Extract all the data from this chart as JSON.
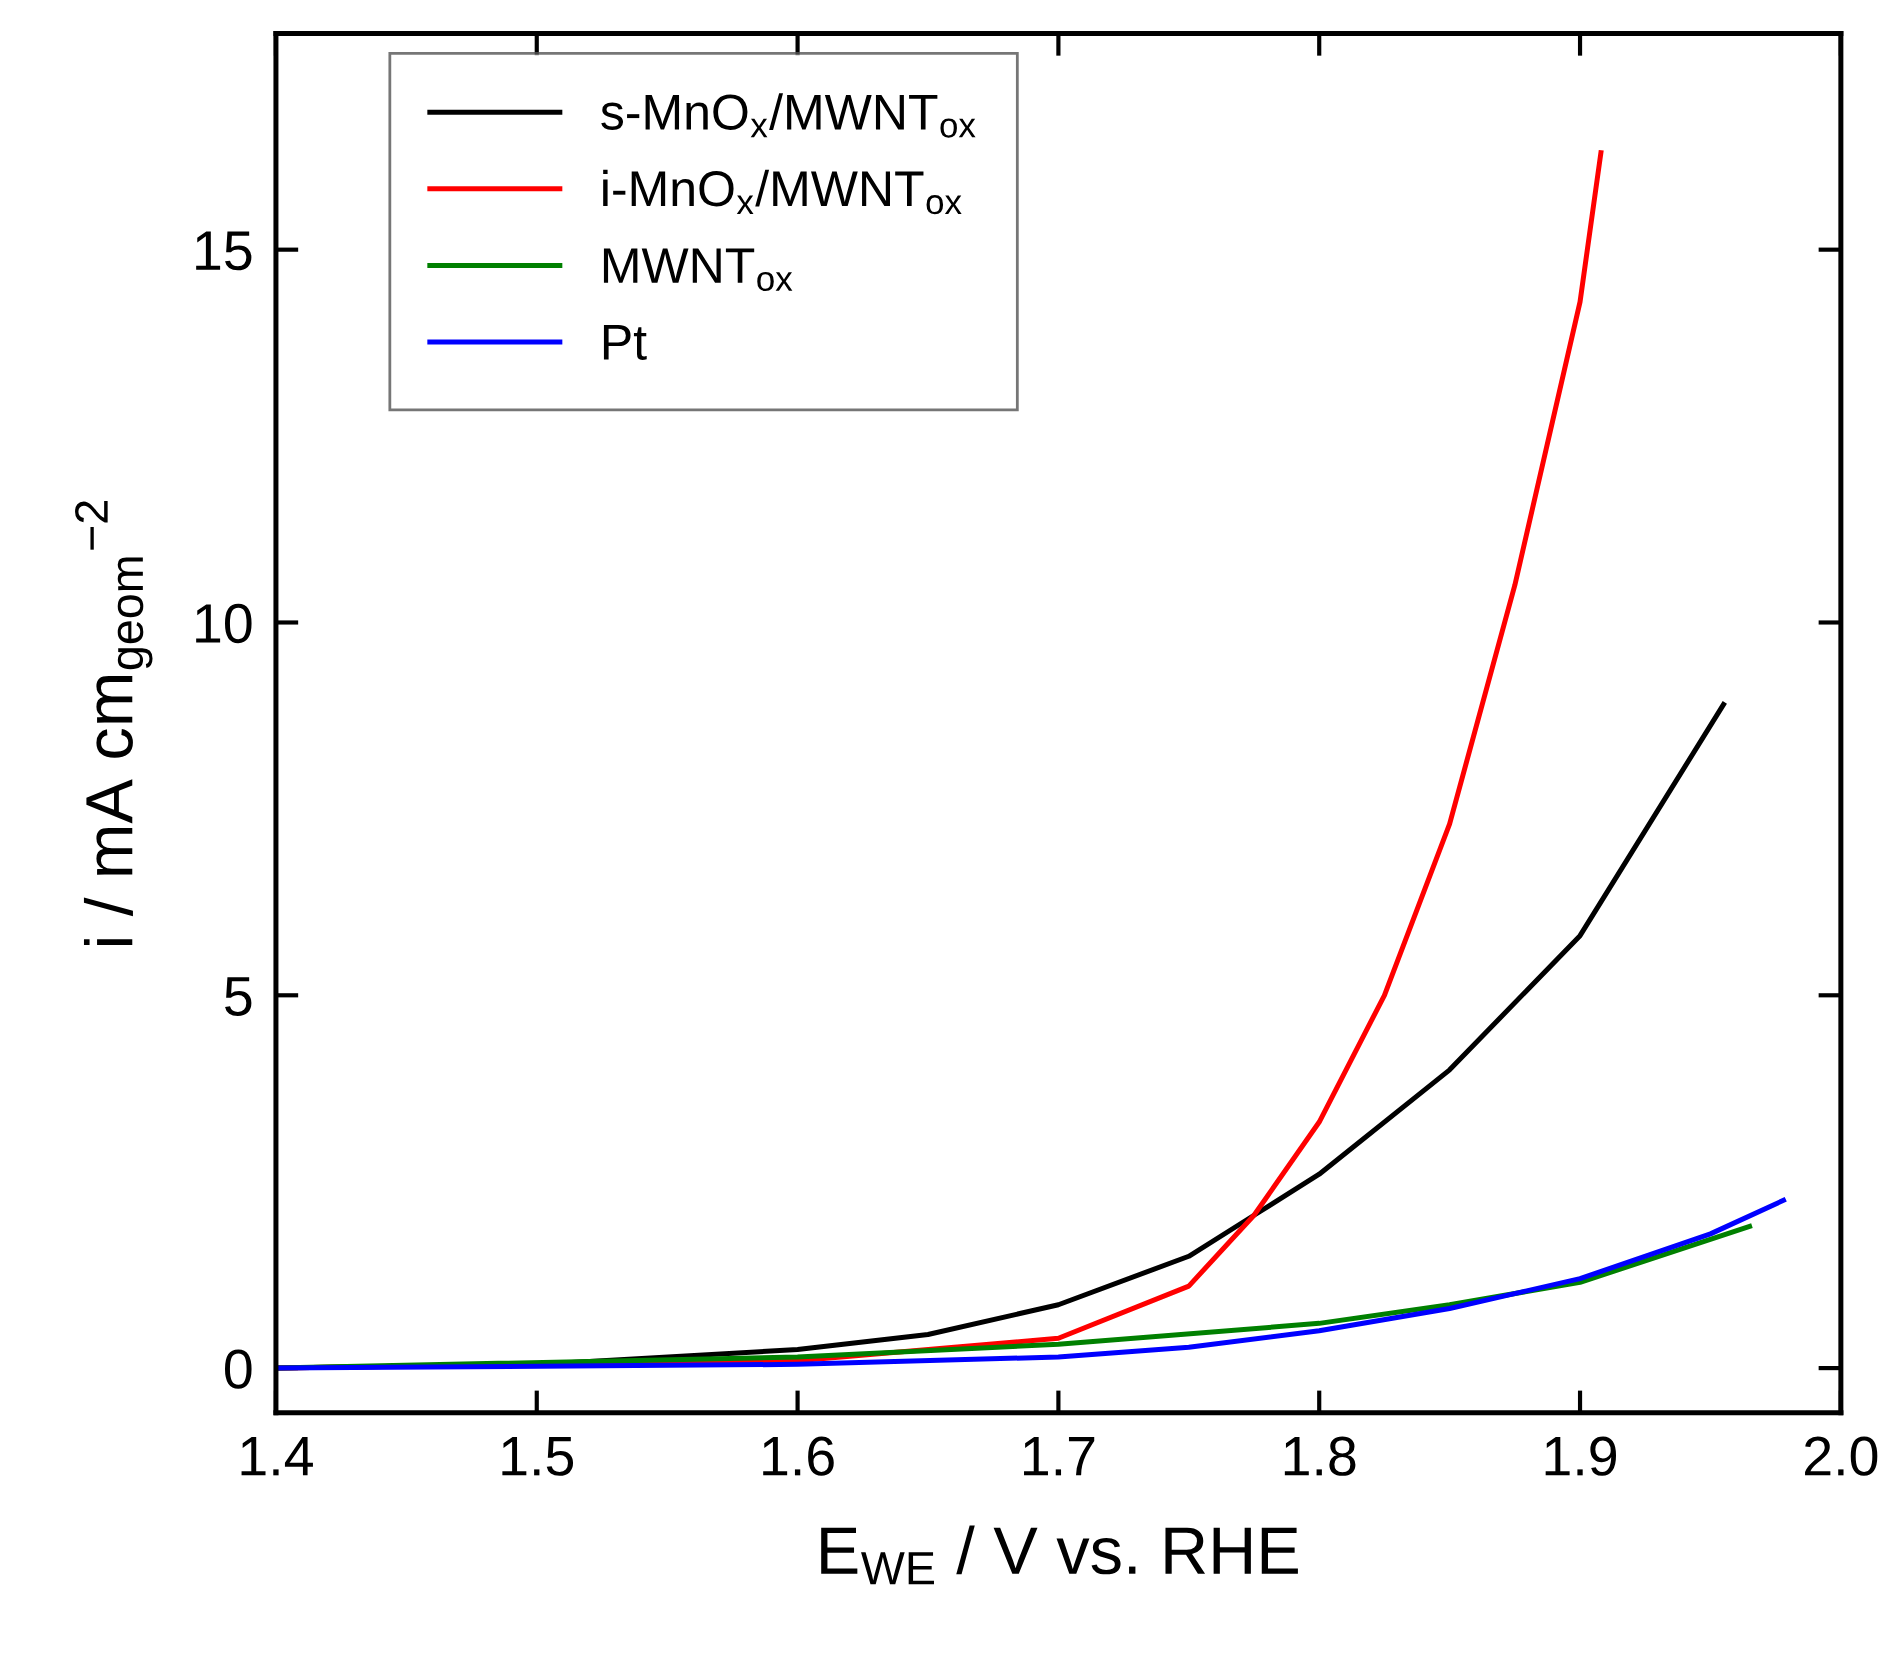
{
  "chart_data": {
    "type": "line",
    "xlabel": "E$_{WE}$ / V vs. RHE",
    "ylabel": "i / mA cm$_{geom}$$^{−2}$",
    "xlim": [
      1.4,
      2.0
    ],
    "xticks": [
      1.4,
      1.5,
      1.6,
      1.7,
      1.8,
      1.9,
      {
        "value": 2.0,
        "label": "2.0"
      }
    ],
    "ylim": [
      -0.6,
      17.9
    ],
    "yticks": [
      0,
      5,
      10,
      15
    ],
    "grid": false,
    "legend": "top left",
    "marker": "none",
    "line_style": "solid",
    "series": [
      {
        "name": "s-MnO$_{x}$/MWNT$_{ox}$",
        "color": "#000000",
        "x": [
          1.4,
          1.5,
          1.6,
          1.65,
          1.7,
          1.75,
          1.775,
          1.8,
          1.85,
          1.9,
          1.955
        ],
        "values": [
          0,
          0.05,
          0.25,
          0.45,
          0.85,
          1.5,
          2.05,
          2.6,
          4.0,
          5.8,
          8.9
        ]
      },
      {
        "name": "i-MnO$_{x}$/MWNT$_{ox}$",
        "color": "#ff0000",
        "x": [
          1.4,
          1.6,
          1.7,
          1.75,
          1.775,
          1.8,
          1.825,
          1.85,
          1.875,
          1.9,
          1.908
        ],
        "values": [
          0,
          0.1,
          0.4,
          1.1,
          2.05,
          3.3,
          5.0,
          7.3,
          10.5,
          14.3,
          16.3
        ]
      },
      {
        "name": "MWNT$_{ox}$",
        "color": "#008000",
        "x": [
          1.4,
          1.6,
          1.7,
          1.8,
          1.85,
          1.9,
          1.965
        ],
        "values": [
          0,
          0.15,
          0.32,
          0.6,
          0.85,
          1.15,
          1.9
        ]
      },
      {
        "name": "Pt",
        "color": "#0000ff",
        "x": [
          1.4,
          1.6,
          1.7,
          1.75,
          1.8,
          1.85,
          1.9,
          1.95,
          1.978
        ],
        "values": [
          0,
          0.05,
          0.15,
          0.28,
          0.5,
          0.8,
          1.2,
          1.8,
          2.25
        ]
      }
    ]
  }
}
